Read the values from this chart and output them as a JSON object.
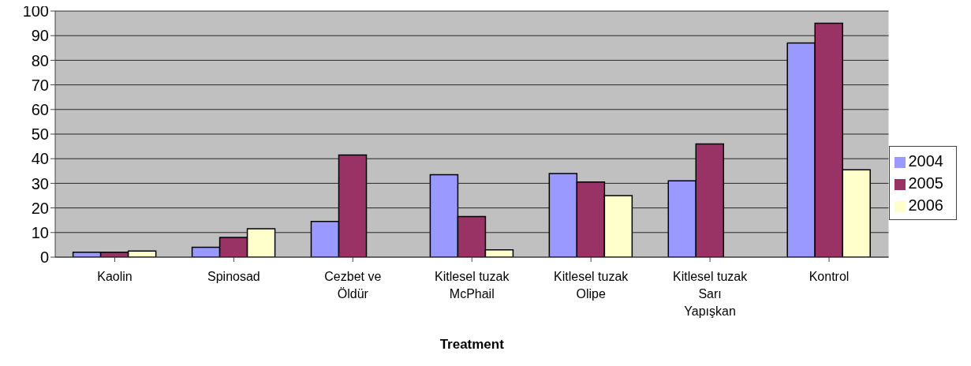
{
  "chart_data": {
    "type": "bar",
    "xlabel": "Treatment",
    "categories": [
      "Kaolin",
      "Spinosad",
      "Cezbet ve\nÖldür",
      "Kitlesel tuzak\nMcPhail",
      "Kitlesel tuzak\nOlipe",
      "Kitlesel tuzak\nSarı\nYapışkan",
      "Kontrol"
    ],
    "series": [
      {
        "name": "2004",
        "color": "#9999ff",
        "values": [
          2,
          4,
          14.5,
          33.5,
          34,
          31,
          87
        ]
      },
      {
        "name": "2005",
        "color": "#993366",
        "values": [
          2,
          8,
          41.5,
          16.5,
          30.5,
          46,
          95
        ]
      },
      {
        "name": "2006",
        "color": "#ffffcc",
        "values": [
          2.5,
          11.5,
          null,
          3,
          25,
          null,
          35.5
        ]
      }
    ],
    "ylim": [
      0,
      100
    ],
    "yticks": [
      0,
      10,
      20,
      30,
      40,
      50,
      60,
      70,
      80,
      90,
      100
    ],
    "grid": "y",
    "legend": "right"
  }
}
